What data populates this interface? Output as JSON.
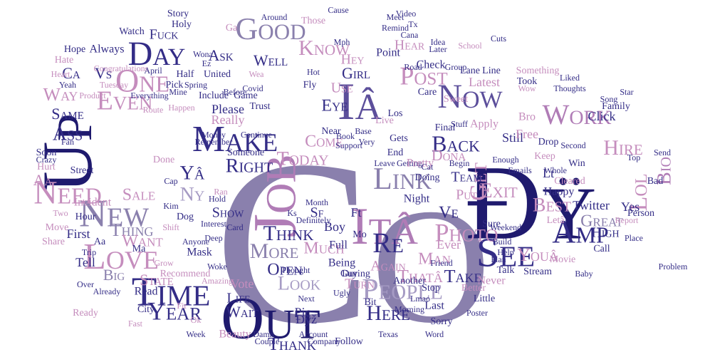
{
  "palette": {
    "dark_navy": "#1f1a6e",
    "navy": "#332c86",
    "mid_purple": "#5c4f9b",
    "slate_purple": "#8a80ad",
    "lavender": "#a69bc4",
    "orchid": "#b07cb6",
    "pink": "#c58dbd",
    "light_pink": "#d8b2d3"
  },
  "words": [
    {
      "text": "Co"
    },
    {
      "text": "Ðÿ"
    },
    {
      "text": "Up"
    },
    {
      "text": "Job"
    },
    {
      "text": "Out"
    },
    {
      "text": "Iâ"
    },
    {
      "text": "Itâ"
    },
    {
      "text": "Time"
    },
    {
      "text": "See"
    },
    {
      "text": "Amp"
    },
    {
      "text": "New"
    },
    {
      "text": "One"
    },
    {
      "text": "Day"
    },
    {
      "text": "Need"
    },
    {
      "text": "Make"
    },
    {
      "text": "Now"
    },
    {
      "text": "Love"
    },
    {
      "text": "Work"
    },
    {
      "text": "People"
    },
    {
      "text": "Year"
    },
    {
      "text": "Good"
    },
    {
      "text": "Even"
    },
    {
      "text": "Link"
    },
    {
      "text": "Re"
    },
    {
      "text": "Here"
    },
    {
      "text": "Thank"
    },
    {
      "text": "Get"
    },
    {
      "text": "Know"
    },
    {
      "text": "Post"
    },
    {
      "text": "Exit"
    },
    {
      "text": "Back"
    },
    {
      "text": "Photo"
    },
    {
      "text": "Lol"
    },
    {
      "text": "Bio"
    },
    {
      "text": "Hire"
    },
    {
      "text": "Best"
    },
    {
      "text": "Look"
    },
    {
      "text": "Think"
    },
    {
      "text": "More"
    },
    {
      "text": "Open"
    },
    {
      "text": "Much"
    },
    {
      "text": "Take"
    },
    {
      "text": "Thatâ"
    },
    {
      "text": "Youâ"
    },
    {
      "text": "Great"
    },
    {
      "text": "Right"
    },
    {
      "text": "Today"
    },
    {
      "text": "Ass"
    },
    {
      "text": "Way"
    },
    {
      "text": "Same"
    },
    {
      "text": "Thing"
    },
    {
      "text": "Sale"
    },
    {
      "text": "Want"
    },
    {
      "text": "Big"
    },
    {
      "text": "State"
    },
    {
      "text": "Wait"
    },
    {
      "text": "Life"
    },
    {
      "text": "Vote"
    },
    {
      "text": "Man"
    },
    {
      "text": "Girl"
    },
    {
      "text": "Hey"
    },
    {
      "text": "Use"
    },
    {
      "text": "Eye"
    },
    {
      "text": "Come"
    },
    {
      "text": "Ve"
    },
    {
      "text": "Ny"
    },
    {
      "text": "Yâ"
    },
    {
      "text": "Vs"
    },
    {
      "text": "Ca"
    },
    {
      "text": "Aa"
    },
    {
      "text": "Fuck"
    },
    {
      "text": "Always"
    },
    {
      "text": "Show"
    },
    {
      "text": "Please"
    },
    {
      "text": "Really"
    },
    {
      "text": "Team"
    },
    {
      "text": "Put"
    },
    {
      "text": "Twitter"
    },
    {
      "text": "Yes"
    },
    {
      "text": "High"
    },
    {
      "text": "Click"
    },
    {
      "text": "Again"
    },
    {
      "text": "Turn"
    },
    {
      "text": "Last"
    },
    {
      "text": "Ever"
    },
    {
      "text": "Never"
    },
    {
      "text": "Still"
    },
    {
      "text": "Dona"
    },
    {
      "text": "Read"
    },
    {
      "text": "First"
    },
    {
      "text": "Tell"
    },
    {
      "text": "Incident"
    },
    {
      "text": "Hour"
    },
    {
      "text": "Street"
    },
    {
      "text": "Mask"
    },
    {
      "text": "Recommend"
    },
    {
      "text": "Morning"
    },
    {
      "text": "Another"
    },
    {
      "text": "Sf"
    },
    {
      "text": "Lt"
    },
    {
      "text": "Ft"
    },
    {
      "text": "Pic"
    },
    {
      "text": "Ðÿž"
    },
    {
      "text": "Keep"
    },
    {
      "text": "Happy"
    },
    {
      "text": "Letâ"
    },
    {
      "text": "Stream"
    },
    {
      "text": "Movie"
    },
    {
      "text": "Call"
    },
    {
      "text": "Ask"
    },
    {
      "text": "Well"
    },
    {
      "text": "Story"
    },
    {
      "text": "Holy"
    },
    {
      "text": "Check"
    },
    {
      "text": "Latest"
    },
    {
      "text": "Apply"
    },
    {
      "text": "Getting"
    },
    {
      "text": "Someone"
    },
    {
      "text": "Trust"
    },
    {
      "text": "Gets"
    },
    {
      "text": "Near"
    },
    {
      "text": "Watch"
    },
    {
      "text": "Guy"
    },
    {
      "text": "Little"
    },
    {
      "text": "Poster"
    },
    {
      "text": "Being"
    },
    {
      "text": "Full"
    },
    {
      "text": "Boy"
    },
    {
      "text": "Definitely"
    },
    {
      "text": "Month"
    },
    {
      "text": "Night"
    },
    {
      "text": "Pretty"
    },
    {
      "text": "Final"
    },
    {
      "text": "Point"
    },
    {
      "text": "Remind"
    },
    {
      "text": "Congratulations"
    },
    {
      "text": "Half"
    },
    {
      "text": "Pick"
    },
    {
      "text": "Hate"
    },
    {
      "text": "Hope"
    },
    {
      "text": "Yeah"
    },
    {
      "text": "Product"
    },
    {
      "text": "Soon"
    },
    {
      "text": "Fan"
    },
    {
      "text": "Done"
    },
    {
      "text": "Dog"
    },
    {
      "text": "City"
    },
    {
      "text": "Over"
    },
    {
      "text": "Grow"
    },
    {
      "text": "Ready"
    },
    {
      "text": "Already"
    },
    {
      "text": "Fast"
    },
    {
      "text": "Week"
    },
    {
      "text": "Beauty"
    },
    {
      "text": "Damn"
    },
    {
      "text": "Couple"
    },
    {
      "text": "Account"
    },
    {
      "text": "Company"
    },
    {
      "text": "Follow"
    },
    {
      "text": "Texas"
    },
    {
      "text": "Better"
    },
    {
      "text": "Plan"
    },
    {
      "text": "Help"
    },
    {
      "text": "Word"
    },
    {
      "text": "Sorry"
    },
    {
      "text": "Friend"
    },
    {
      "text": "Talk"
    },
    {
      "text": "Build"
    },
    {
      "text": "Person"
    },
    {
      "text": "Report"
    },
    {
      "text": "Send"
    },
    {
      "text": "Place"
    },
    {
      "text": "Problem"
    },
    {
      "text": "Bad"
    },
    {
      "text": "Top"
    },
    {
      "text": "Song"
    },
    {
      "text": "Family"
    },
    {
      "text": "Star"
    },
    {
      "text": "Free"
    },
    {
      "text": "Drop"
    },
    {
      "text": "Whole"
    },
    {
      "text": "Something"
    },
    {
      "text": "Took"
    },
    {
      "text": "Wow"
    },
    {
      "text": "Liked"
    },
    {
      "text": "School"
    },
    {
      "text": "Idea"
    },
    {
      "text": "Later"
    },
    {
      "text": "Group"
    },
    {
      "text": "Road"
    },
    {
      "text": "Video"
    },
    {
      "text": "Meet"
    },
    {
      "text": "Cause"
    },
    {
      "text": "Those"
    },
    {
      "text": "Around"
    },
    {
      "text": "United"
    },
    {
      "text": "Before"
    },
    {
      "text": "Covid"
    },
    {
      "text": "Include"
    },
    {
      "text": "Game"
    },
    {
      "text": "Fly"
    },
    {
      "text": "Care"
    },
    {
      "text": "Live"
    },
    {
      "text": "Base"
    },
    {
      "text": "Very"
    },
    {
      "text": "End"
    },
    {
      "text": "Doing"
    },
    {
      "text": "Sure"
    },
    {
      "text": "Money"
    },
    {
      "text": "Book"
    },
    {
      "text": "Remember"
    },
    {
      "text": "Continue"
    },
    {
      "text": "Support"
    },
    {
      "text": "Everything"
    },
    {
      "text": "Happen"
    },
    {
      "text": "Route"
    },
    {
      "text": "Mine"
    },
    {
      "text": "Spring"
    },
    {
      "text": "Tuesday"
    },
    {
      "text": "Heart"
    },
    {
      "text": "Crazy"
    },
    {
      "text": "Cap"
    },
    {
      "text": "Kim"
    },
    {
      "text": "Move"
    },
    {
      "text": "Two"
    },
    {
      "text": "Shift"
    },
    {
      "text": "Hurt"
    },
    {
      "text": "Share"
    },
    {
      "text": "Trip"
    },
    {
      "text": "During"
    },
    {
      "text": "Thought"
    },
    {
      "text": "Ugly"
    },
    {
      "text": "Bit"
    },
    {
      "text": "Stop"
    },
    {
      "text": "Cat"
    },
    {
      "text": "Bro"
    },
    {
      "text": "Baby"
    },
    {
      "text": "Weekend"
    },
    {
      "text": "Thoughts"
    },
    {
      "text": "Mph"
    },
    {
      "text": "Hear"
    },
    {
      "text": "Cana"
    },
    {
      "text": "Wona"
    },
    {
      "text": "Ez"
    },
    {
      "text": "Ks"
    },
    {
      "text": "Aa"
    },
    {
      "text": "Ma"
    },
    {
      "text": "Mo"
    },
    {
      "text": "Ga"
    },
    {
      "text": "Wea"
    },
    {
      "text": "Hot"
    },
    {
      "text": "Sweet"
    },
    {
      "text": "Stuff"
    },
    {
      "text": "Los"
    },
    {
      "text": "Fit"
    },
    {
      "text": "Ok"
    },
    {
      "text": "Amazing"
    },
    {
      "text": "Anyone"
    },
    {
      "text": "Interest"
    },
    {
      "text": "Deep"
    },
    {
      "text": "Hold"
    },
    {
      "text": "Card"
    },
    {
      "text": "Ran"
    },
    {
      "text": "Woke"
    },
    {
      "text": "Begin"
    },
    {
      "text": "Leave"
    },
    {
      "text": "Enough"
    },
    {
      "text": "Emails"
    },
    {
      "text": "Second"
    },
    {
      "text": "Win"
    },
    {
      "text": "Cleared"
    },
    {
      "text": "Lane"
    },
    {
      "text": "Line"
    },
    {
      "text": "Tx"
    },
    {
      "text": "Next"
    },
    {
      "text": "Cuts"
    },
    {
      "text": "Lmao"
    },
    {
      "text": "April"
    },
    {
      "text": "Tip"
    },
    {
      "text": "Hair"
    }
  ]
}
